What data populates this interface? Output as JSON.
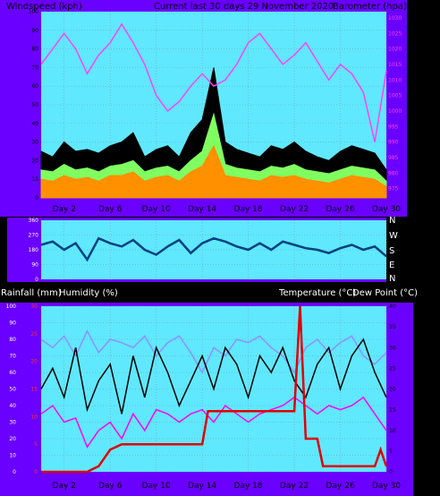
{
  "chart_data": [
    {
      "type": "line",
      "panel": "wind-barometer",
      "title": "Current last 30 days 29 November 2020",
      "ylabel_left": "Windspeed (kph)",
      "ylabel_right": "Barometer (hpa)",
      "x_ticks": [
        "Day 2",
        "Day 6",
        "Day 10",
        "Day 14",
        "Day 18",
        "Day 22",
        "Day 26",
        "Day 30"
      ],
      "x_range": [
        0,
        30
      ],
      "y_left_ticks": [
        "0",
        "10",
        "20",
        "30",
        "40",
        "50",
        "60",
        "70",
        "80",
        "90",
        "100"
      ],
      "y_left_range": [
        0,
        100
      ],
      "y_right_ticks": [
        "975",
        "980",
        "985",
        "990",
        "995",
        "1000",
        "1005",
        "1010",
        "1015",
        "1020",
        "1025",
        "1030"
      ],
      "y_right_range": [
        972,
        1032
      ],
      "grid": true,
      "series": [
        {
          "color": "#ff40ff",
          "axis": "right",
          "day": [
            0,
            1,
            2,
            3,
            4,
            5,
            6,
            7,
            8,
            9,
            10,
            11,
            12,
            13,
            14,
            15,
            16,
            17,
            18,
            19,
            20,
            21,
            22,
            23,
            24,
            25,
            26,
            27,
            28,
            29,
            30
          ],
          "values": [
            1015,
            1020,
            1025,
            1020,
            1012,
            1018,
            1022,
            1028,
            1022,
            1015,
            1005,
            1000,
            1003,
            1008,
            1012,
            1008,
            1010,
            1015,
            1022,
            1025,
            1020,
            1015,
            1018,
            1022,
            1016,
            1010,
            1015,
            1012,
            1006,
            990,
            1013
          ]
        },
        {
          "color": "#000000",
          "axis": "left",
          "day": [
            0,
            1,
            2,
            3,
            4,
            5,
            6,
            7,
            8,
            9,
            10,
            11,
            12,
            13,
            14,
            15,
            16,
            17,
            18,
            19,
            20,
            21,
            22,
            23,
            24,
            25,
            26,
            27,
            28,
            29,
            30
          ],
          "values": [
            25,
            22,
            30,
            25,
            26,
            24,
            28,
            30,
            35,
            22,
            26,
            28,
            22,
            35,
            42,
            70,
            30,
            26,
            24,
            22,
            28,
            26,
            30,
            25,
            22,
            20,
            25,
            28,
            26,
            24,
            15
          ]
        },
        {
          "color": "#80ff60",
          "axis": "left",
          "day": [
            0,
            1,
            2,
            3,
            4,
            5,
            6,
            7,
            8,
            9,
            10,
            11,
            12,
            13,
            14,
            15,
            16,
            17,
            18,
            19,
            20,
            21,
            22,
            23,
            24,
            25,
            26,
            27,
            28,
            29,
            30
          ],
          "values": [
            15,
            14,
            18,
            15,
            16,
            14,
            17,
            18,
            20,
            14,
            16,
            17,
            14,
            20,
            25,
            45,
            18,
            16,
            15,
            14,
            17,
            16,
            18,
            15,
            14,
            13,
            15,
            17,
            16,
            15,
            9
          ]
        },
        {
          "color": "#ff9000",
          "axis": "left",
          "day": [
            0,
            1,
            2,
            3,
            4,
            5,
            6,
            7,
            8,
            9,
            10,
            11,
            12,
            13,
            14,
            15,
            16,
            17,
            18,
            19,
            20,
            21,
            22,
            23,
            24,
            25,
            26,
            27,
            28,
            29,
            30
          ],
          "values": [
            10,
            9,
            12,
            10,
            11,
            9,
            12,
            12,
            14,
            9,
            11,
            12,
            9,
            14,
            17,
            28,
            12,
            11,
            10,
            9,
            12,
            11,
            12,
            10,
            9,
            8,
            10,
            12,
            11,
            10,
            6
          ]
        }
      ]
    },
    {
      "type": "line",
      "panel": "wind-direction",
      "y_ticks": [
        "360",
        "270",
        "180",
        "90",
        "0"
      ],
      "y_range": [
        0,
        360
      ],
      "direction_labels": [
        "N",
        "W",
        "S",
        "E",
        "N"
      ],
      "grid": true,
      "series": [
        {
          "color": "#004080",
          "day": [
            0,
            1,
            2,
            3,
            4,
            5,
            6,
            7,
            8,
            9,
            10,
            11,
            12,
            13,
            14,
            15,
            16,
            17,
            18,
            19,
            20,
            21,
            22,
            23,
            24,
            25,
            26,
            27,
            28,
            29,
            30
          ],
          "values": [
            210,
            230,
            180,
            220,
            120,
            250,
            220,
            200,
            240,
            180,
            150,
            200,
            240,
            160,
            220,
            250,
            230,
            200,
            180,
            220,
            180,
            230,
            210,
            190,
            180,
            160,
            190,
            210,
            180,
            200,
            140
          ]
        }
      ]
    },
    {
      "type": "line",
      "panel": "rain-humidity-temperature",
      "ylabel_left": "Rainfall (mm)",
      "ylabel_left2": "Humidity (%)",
      "ylabel_right": "Temperature (°C)",
      "ylabel_right2": "Dew Point (°C)",
      "x_ticks": [
        "Day 2",
        "Day 6",
        "Day 10",
        "Day 14",
        "Day 18",
        "Day 22",
        "Day 26",
        "Day 30"
      ],
      "x_range": [
        0,
        30
      ],
      "humidity_ticks": [
        "0",
        "10",
        "20",
        "30",
        "40",
        "50",
        "60",
        "70",
        "80",
        "90",
        "100"
      ],
      "humidity_range": [
        0,
        100
      ],
      "rain_ticks": [
        "0",
        "5",
        "10",
        "15",
        "20",
        "25",
        "30"
      ],
      "rain_range": [
        0,
        30
      ],
      "temp_ticks": [
        "0",
        "5",
        "10",
        "15",
        "20",
        "25",
        "30",
        "35",
        "40"
      ],
      "temp_range": [
        0,
        40
      ],
      "grid": true,
      "series": [
        {
          "name": "Humidity",
          "color": "#9090ff",
          "axis": "humidity",
          "day": [
            0,
            1,
            2,
            3,
            4,
            5,
            6,
            7,
            8,
            9,
            10,
            11,
            12,
            13,
            14,
            15,
            16,
            17,
            18,
            19,
            20,
            21,
            22,
            23,
            24,
            25,
            26,
            27,
            28,
            29,
            30
          ],
          "values": [
            80,
            75,
            82,
            70,
            85,
            72,
            80,
            78,
            75,
            82,
            70,
            78,
            82,
            72,
            60,
            75,
            70,
            80,
            78,
            82,
            75,
            70,
            60,
            75,
            80,
            72,
            78,
            82,
            70,
            65,
            72
          ]
        },
        {
          "name": "Temperature",
          "color": "#000000",
          "axis": "temp",
          "day": [
            0,
            1,
            2,
            3,
            4,
            5,
            6,
            7,
            8,
            9,
            10,
            11,
            12,
            13,
            14,
            15,
            16,
            17,
            18,
            19,
            20,
            21,
            22,
            23,
            24,
            25,
            26,
            27,
            28,
            29,
            30
          ],
          "values": [
            20,
            25,
            18,
            30,
            15,
            22,
            26,
            14,
            28,
            18,
            30,
            24,
            16,
            22,
            28,
            20,
            30,
            26,
            18,
            28,
            24,
            30,
            22,
            18,
            26,
            30,
            20,
            28,
            32,
            24,
            18
          ]
        },
        {
          "name": "Dew Point",
          "color": "#ff00ff",
          "axis": "temp",
          "day": [
            0,
            1,
            2,
            3,
            4,
            5,
            6,
            7,
            8,
            9,
            10,
            11,
            12,
            13,
            14,
            15,
            16,
            17,
            18,
            19,
            20,
            21,
            22,
            23,
            24,
            25,
            26,
            27,
            28,
            29,
            30
          ],
          "values": [
            14,
            16,
            12,
            13,
            6,
            10,
            12,
            8,
            14,
            10,
            15,
            14,
            12,
            14,
            15,
            12,
            16,
            14,
            12,
            14,
            15,
            16,
            18,
            16,
            14,
            16,
            15,
            16,
            18,
            14,
            10
          ]
        },
        {
          "name": "Rainfall",
          "color": "#e00000",
          "axis": "rain",
          "day": [
            0,
            4,
            5,
            6,
            7,
            10,
            14,
            14.5,
            22,
            22.5,
            23,
            23.5,
            24,
            24.5,
            29,
            29.5,
            30
          ],
          "values": [
            0,
            0,
            1,
            4,
            5,
            5,
            5,
            11,
            11,
            30,
            6,
            6,
            6,
            1,
            1,
            4,
            1
          ]
        }
      ]
    }
  ]
}
